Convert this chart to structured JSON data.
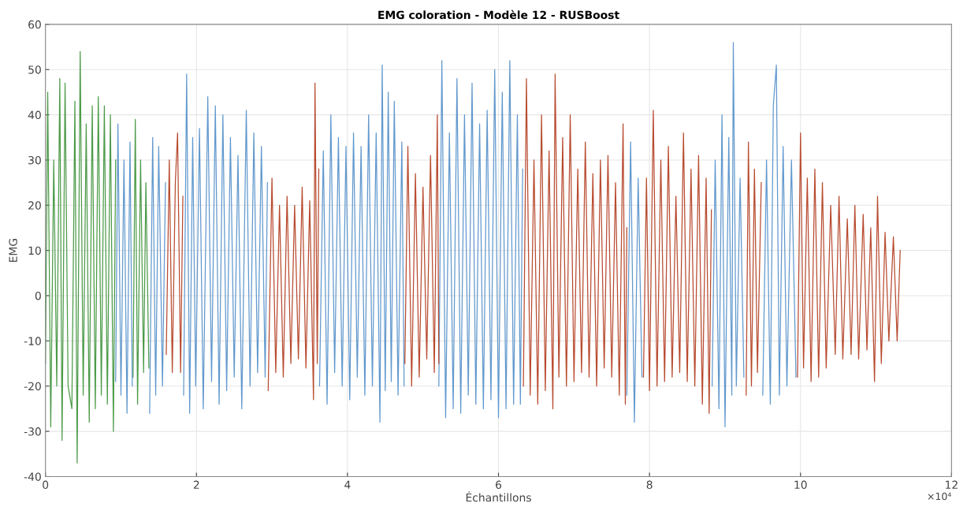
{
  "chart_data": {
    "type": "line",
    "title": "EMG coloration - Modèle 12 - RUSBoost",
    "xlabel": "Échantillons",
    "ylabel": "EMG",
    "annotations": [
      "×10⁴"
    ],
    "xlim": [
      0,
      12
    ],
    "xticks": [
      0,
      2,
      4,
      6,
      8,
      10,
      12
    ],
    "ylim": [
      -40,
      60
    ],
    "yticks": [
      -40,
      -30,
      -20,
      -10,
      0,
      10,
      20,
      30,
      40,
      50,
      60
    ],
    "grid": true,
    "legend": false,
    "marker": "none",
    "line_style": "solid",
    "series": [
      {
        "color": "#4c9a48",
        "x": [
          0,
          0.03,
          0.07,
          0.11,
          0.15,
          0.19,
          0.22,
          0.26,
          0.3,
          0.35,
          0.39,
          0.42,
          0.46,
          0.5,
          0.54,
          0.58,
          0.62,
          0.66,
          0.7,
          0.74,
          0.78,
          0.82,
          0.86,
          0.9,
          0.93,
          1.045,
          1.16,
          1.19,
          1.22,
          1.26,
          1.3,
          1.33,
          1.37
        ],
        "values": [
          -15,
          45,
          -29,
          30,
          -20,
          48,
          -32,
          47,
          -20,
          -25,
          43,
          -37,
          54,
          -22,
          38,
          -28,
          42,
          -25,
          44,
          -22,
          42,
          -24,
          40,
          -30,
          30,
          null,
          -18,
          39,
          -24,
          30,
          -17,
          25,
          -16
        ]
      },
      {
        "color": "#6198cd",
        "x": [
          0.93,
          0.96,
          1.0,
          1.04,
          1.08,
          1.12,
          1.15,
          1.27,
          1.38,
          1.42,
          1.46,
          1.5,
          1.55,
          1.59,
          1.7,
          1.83,
          1.87,
          1.91,
          1.95,
          1.99,
          2.04,
          2.09,
          2.15,
          2.2,
          2.25,
          2.3,
          2.35,
          2.4,
          2.45,
          2.5,
          2.55,
          2.6,
          2.66,
          2.71,
          2.76,
          2.81,
          2.86,
          2.91,
          2.94,
          3.3,
          3.63,
          3.68,
          3.73,
          3.78,
          3.83,
          3.88,
          3.93,
          3.98,
          4.03,
          4.08,
          4.13,
          4.18,
          4.23,
          4.28,
          4.33,
          4.38,
          4.43,
          4.46,
          4.5,
          4.54,
          4.58,
          4.62,
          4.67,
          4.72,
          4.75,
          5.0,
          5.21,
          5.25,
          5.3,
          5.35,
          5.4,
          5.45,
          5.5,
          5.55,
          5.6,
          5.65,
          5.7,
          5.75,
          5.8,
          5.85,
          5.9,
          5.95,
          6.0,
          6.05,
          6.1,
          6.15,
          6.2,
          6.25,
          6.29,
          6.32,
          7.0,
          7.7,
          7.75,
          7.8,
          7.85,
          7.9,
          8.4,
          8.83,
          8.87,
          8.92,
          8.96,
          9.0,
          9.05,
          9.09,
          9.11,
          9.15,
          9.2,
          9.25,
          9.4,
          9.5,
          9.55,
          9.6,
          9.64,
          9.68,
          9.72,
          9.77,
          9.82,
          9.88,
          9.94
        ],
        "values": [
          -19,
          38,
          -22,
          30,
          -26,
          34,
          -20,
          null,
          -26,
          35,
          -22,
          33,
          -20,
          25,
          null,
          -22,
          49,
          -26,
          35,
          -20,
          37,
          -25,
          44,
          -19,
          42,
          -24,
          40,
          -21,
          35,
          -18,
          31,
          -25,
          41,
          -20,
          36,
          -17,
          33,
          -18,
          25,
          null,
          -20,
          32,
          -24,
          40,
          -17,
          35,
          -20,
          33,
          -23,
          36,
          -18,
          33,
          -22,
          40,
          -20,
          36,
          -28,
          51,
          -21,
          45,
          -19,
          43,
          -22,
          34,
          -20,
          null,
          -20,
          52,
          -27,
          36,
          -25,
          48,
          -26,
          40,
          -22,
          47,
          -24,
          38,
          -25,
          41,
          -23,
          50,
          -27,
          45,
          -25,
          52,
          -24,
          40,
          -24,
          28,
          null,
          -22,
          34,
          -28,
          26,
          -18,
          null,
          -20,
          30,
          -25,
          40,
          -29,
          35,
          -22,
          56,
          -20,
          26,
          -18,
          null,
          -22,
          30,
          -24,
          42,
          51,
          -22,
          33,
          -20,
          30,
          -18
        ]
      },
      {
        "color": "#b84b30",
        "x": [
          1.6,
          1.64,
          1.68,
          1.72,
          1.75,
          1.79,
          1.82,
          2.4,
          2.95,
          3.0,
          3.05,
          3.1,
          3.15,
          3.2,
          3.25,
          3.3,
          3.35,
          3.4,
          3.45,
          3.5,
          3.55,
          3.57,
          3.6,
          3.62,
          4.2,
          4.76,
          4.8,
          4.85,
          4.9,
          4.95,
          5.0,
          5.05,
          5.1,
          5.15,
          5.19,
          5.21,
          5.8,
          6.33,
          6.37,
          6.42,
          6.47,
          6.52,
          6.57,
          6.62,
          6.67,
          6.72,
          6.75,
          6.8,
          6.85,
          6.9,
          6.95,
          7.0,
          7.05,
          7.1,
          7.15,
          7.2,
          7.25,
          7.3,
          7.35,
          7.4,
          7.45,
          7.5,
          7.55,
          7.6,
          7.65,
          7.68,
          7.7,
          7.8,
          7.92,
          7.96,
          8.0,
          8.05,
          8.1,
          8.15,
          8.2,
          8.25,
          8.3,
          8.35,
          8.4,
          8.45,
          8.5,
          8.55,
          8.6,
          8.65,
          8.7,
          8.75,
          8.79,
          8.82,
          9.1,
          9.28,
          9.31,
          9.35,
          9.39,
          9.43,
          9.48,
          9.7,
          9.96,
          10.0,
          10.04,
          10.09,
          10.14,
          10.19,
          10.24,
          10.29,
          10.34,
          10.4,
          10.46,
          10.51,
          10.56,
          10.62,
          10.67,
          10.72,
          10.77,
          10.83,
          10.88,
          10.93,
          10.98,
          11.02,
          11.07,
          11.12,
          11.17,
          11.23,
          11.28,
          11.32
        ],
        "values": [
          -13,
          30,
          -17,
          25,
          36,
          -17,
          22,
          null,
          -21,
          26,
          -17,
          20,
          -18,
          22,
          -15,
          20,
          -14,
          24,
          -16,
          21,
          -23,
          47,
          -15,
          28,
          null,
          -15,
          33,
          -20,
          27,
          -18,
          24,
          -14,
          31,
          -17,
          40,
          -15,
          null,
          -20,
          48,
          -22,
          30,
          -24,
          40,
          -21,
          32,
          -25,
          49,
          -18,
          35,
          -20,
          40,
          -19,
          28,
          -17,
          34,
          -18,
          27,
          -20,
          30,
          -16,
          31,
          -18,
          25,
          -22,
          38,
          -24,
          15,
          null,
          -18,
          26,
          -21,
          41,
          -20,
          30,
          -19,
          33,
          -18,
          22,
          -17,
          36,
          -19,
          28,
          -20,
          31,
          -24,
          26,
          -26,
          19,
          null,
          -22,
          34,
          -20,
          28,
          -17,
          25,
          null,
          -18,
          36,
          -16,
          26,
          -19,
          28,
          -18,
          25,
          -16,
          20,
          -13,
          22,
          -14,
          17,
          -13,
          20,
          -14,
          18,
          -12,
          15,
          -19,
          22,
          -15,
          14,
          -10,
          13,
          -10,
          10
        ]
      }
    ]
  }
}
